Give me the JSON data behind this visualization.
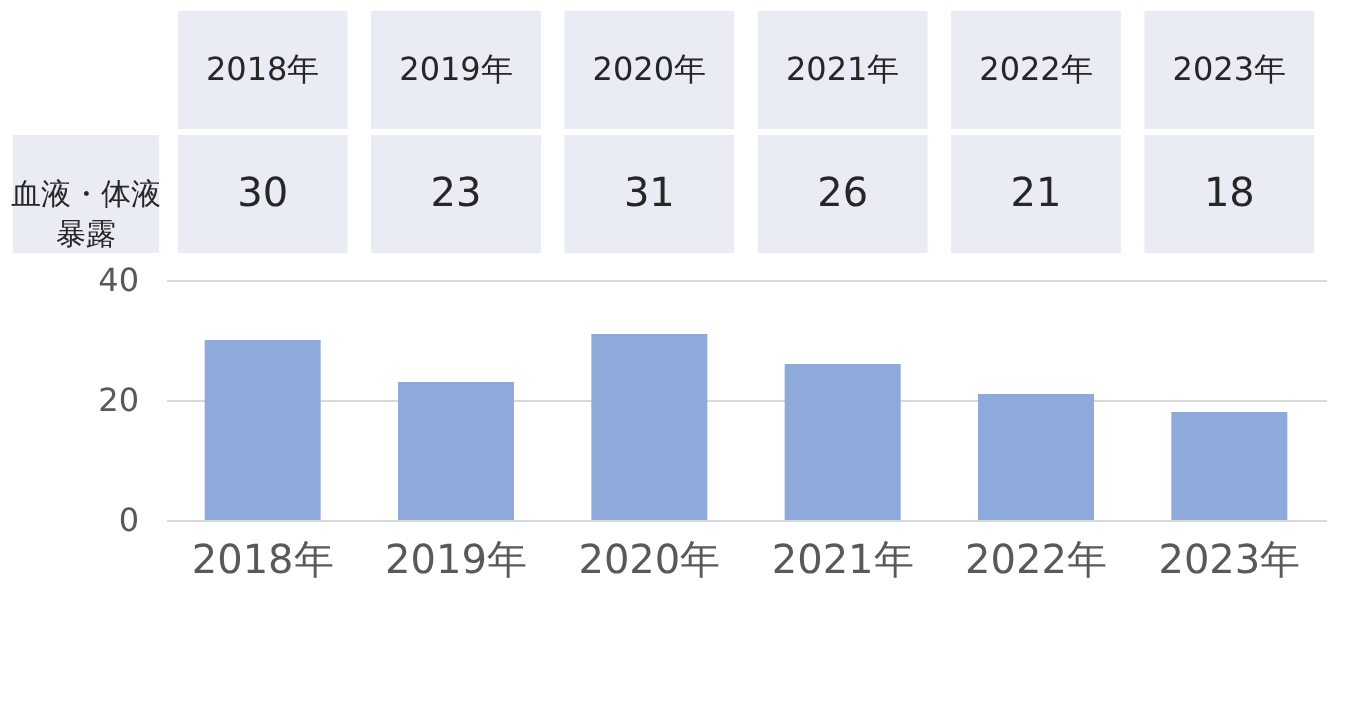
{
  "chart_data": {
    "type": "bar",
    "categories": [
      "2018年",
      "2019年",
      "2020年",
      "2021年",
      "2022年",
      "2023年"
    ],
    "series": [
      {
        "name": "血液・体液暴露",
        "color": "#8eaadb",
        "values": [
          30,
          23,
          31,
          26,
          21,
          18
        ]
      }
    ],
    "ylim": [
      0,
      40
    ],
    "yticks": [
      0,
      20,
      40
    ],
    "grid": "y",
    "data_labels": true,
    "legend": false
  }
}
